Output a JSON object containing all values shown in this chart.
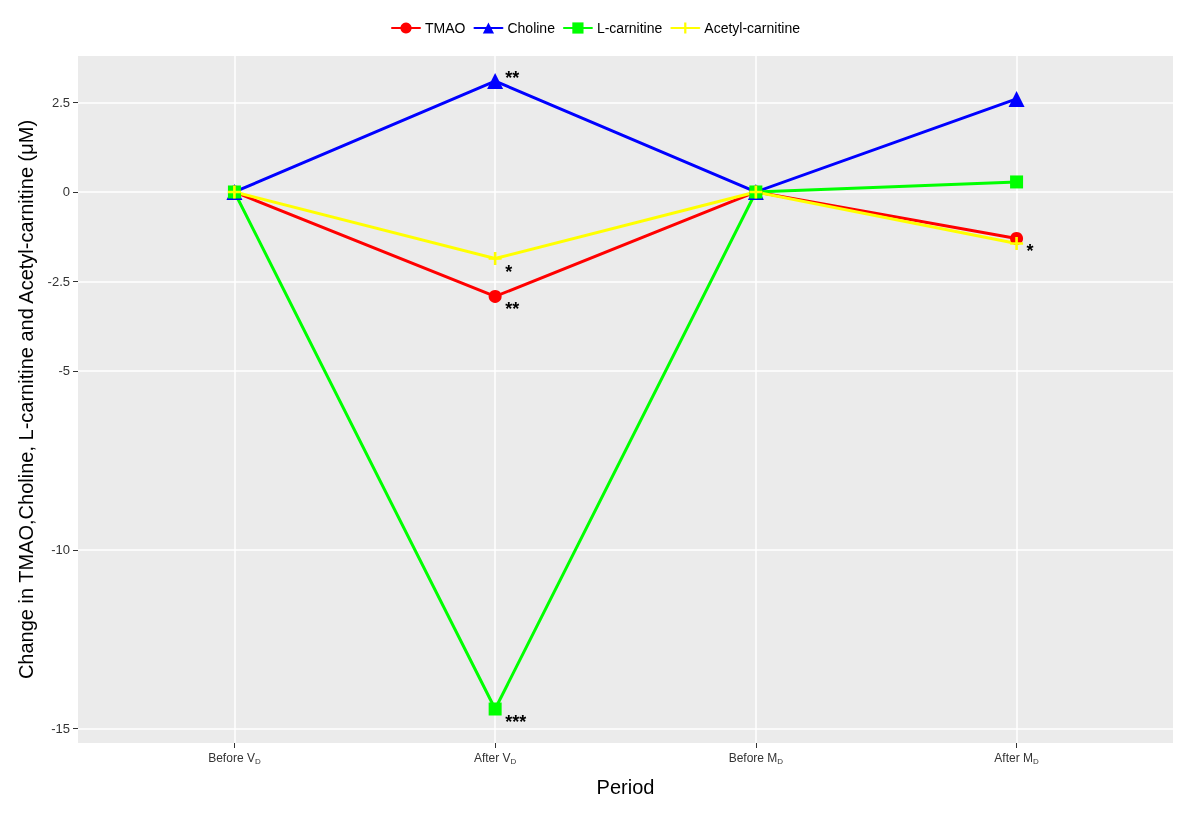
{
  "chart_data": {
    "type": "line",
    "xlabel": "Period",
    "ylabel": "Change in TMAO,Choline, L-carnitine and Acetyl-carnitine (μM)",
    "categories": [
      "Before V$_{D}$",
      "After V$_{D}$",
      "Before M$_{D}$",
      "After M$_{D}$"
    ],
    "series": [
      {
        "name": "TMAO",
        "color": "#ff0000",
        "marker": "circle",
        "values": [
          0,
          -2.92,
          0,
          -1.3
        ]
      },
      {
        "name": "Choline",
        "color": "#0000ff",
        "marker": "triangle",
        "values": [
          0,
          3.1,
          0,
          2.6
        ]
      },
      {
        "name": "L-carnitine",
        "color": "#00ff00",
        "marker": "square",
        "values": [
          0,
          -14.45,
          0,
          0.28
        ]
      },
      {
        "name": "Acetyl-carnitine",
        "color": "#ffff00",
        "marker": "cross",
        "values": [
          0,
          -1.86,
          0,
          -1.44
        ]
      }
    ],
    "ylim": [
      -15.4,
      3.8
    ],
    "yticks": [
      -15,
      -10,
      -5,
      -2.5,
      0,
      2.5
    ],
    "annotations": [
      {
        "text": "**",
        "x": "After V$_{D}$",
        "y": 3.1
      },
      {
        "text": "*",
        "x": "After V$_{D}$",
        "y": -1.86
      },
      {
        "text": "**",
        "x": "After V$_{D}$",
        "y": -2.92
      },
      {
        "text": "***",
        "x": "After V$_{D}$",
        "y": -14.45
      },
      {
        "text": "*",
        "x": "After M$_{D}$",
        "y": -1.3
      }
    ],
    "grid": true,
    "legend": "top",
    "line_style": "solid"
  }
}
